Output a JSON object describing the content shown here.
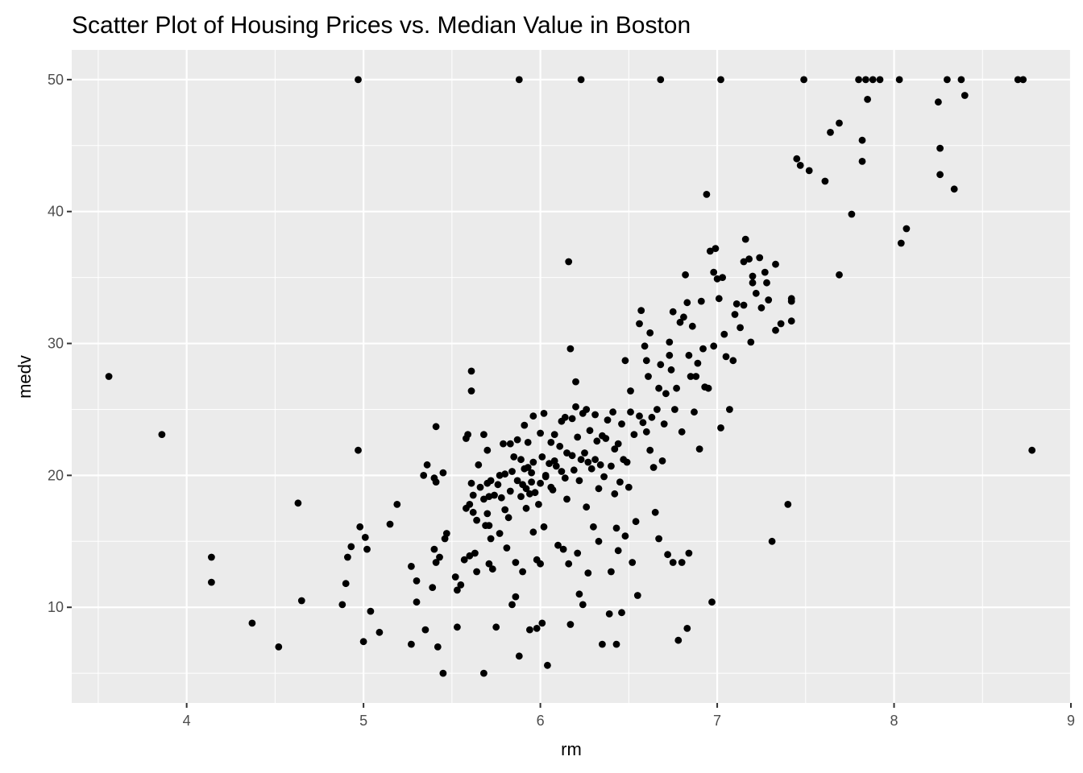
{
  "chart_data": {
    "type": "scatter",
    "title": "Scatter Plot of Housing Prices vs. Median Value in Boston",
    "xlabel": "rm",
    "ylabel": "medv",
    "xlim": [
      3.35,
      9.0
    ],
    "ylim": [
      2.75,
      52.25
    ],
    "xticks": [
      4,
      5,
      6,
      7,
      8,
      9
    ],
    "yticks": [
      10,
      20,
      30,
      40,
      50
    ],
    "grid": true,
    "panel_color": "#ebebeb",
    "point_color": "#000000",
    "points": [
      [
        3.56,
        27.5
      ],
      [
        3.86,
        23.1
      ],
      [
        4.14,
        13.8
      ],
      [
        4.14,
        11.9
      ],
      [
        4.37,
        8.8
      ],
      [
        4.52,
        7.0
      ],
      [
        4.63,
        17.9
      ],
      [
        4.65,
        10.5
      ],
      [
        4.88,
        10.2
      ],
      [
        4.9,
        11.8
      ],
      [
        4.91,
        13.8
      ],
      [
        4.93,
        14.6
      ],
      [
        4.97,
        50.0
      ],
      [
        4.97,
        21.9
      ],
      [
        4.98,
        16.1
      ],
      [
        5.0,
        7.4
      ],
      [
        5.01,
        15.3
      ],
      [
        5.02,
        14.4
      ],
      [
        5.04,
        9.7
      ],
      [
        5.09,
        8.1
      ],
      [
        5.15,
        16.3
      ],
      [
        5.19,
        17.8
      ],
      [
        5.27,
        13.1
      ],
      [
        5.27,
        7.2
      ],
      [
        5.3,
        12.0
      ],
      [
        5.3,
        10.4
      ],
      [
        5.34,
        20.0
      ],
      [
        5.35,
        8.3
      ],
      [
        5.36,
        20.8
      ],
      [
        5.39,
        11.5
      ],
      [
        5.4,
        19.8
      ],
      [
        5.4,
        14.4
      ],
      [
        5.41,
        13.4
      ],
      [
        5.41,
        19.5
      ],
      [
        5.41,
        23.7
      ],
      [
        5.42,
        7.0
      ],
      [
        5.43,
        13.8
      ],
      [
        5.45,
        20.2
      ],
      [
        5.45,
        5.0
      ],
      [
        5.46,
        15.2
      ],
      [
        5.47,
        15.6
      ],
      [
        5.52,
        12.3
      ],
      [
        5.53,
        8.5
      ],
      [
        5.53,
        11.3
      ],
      [
        5.55,
        11.7
      ],
      [
        5.57,
        13.6
      ],
      [
        5.58,
        17.5
      ],
      [
        5.58,
        22.8
      ],
      [
        5.59,
        23.1
      ],
      [
        5.6,
        17.8
      ],
      [
        5.6,
        13.9
      ],
      [
        5.61,
        19.4
      ],
      [
        5.61,
        26.4
      ],
      [
        5.61,
        27.9
      ],
      [
        5.62,
        18.5
      ],
      [
        5.62,
        17.2
      ],
      [
        5.63,
        14.1
      ],
      [
        5.64,
        16.6
      ],
      [
        5.64,
        12.7
      ],
      [
        5.65,
        20.8
      ],
      [
        5.66,
        19.1
      ],
      [
        5.68,
        18.2
      ],
      [
        5.68,
        23.1
      ],
      [
        5.68,
        5.0
      ],
      [
        5.69,
        16.2
      ],
      [
        5.7,
        17.1
      ],
      [
        5.7,
        19.4
      ],
      [
        5.7,
        21.9
      ],
      [
        5.71,
        13.3
      ],
      [
        5.71,
        16.2
      ],
      [
        5.71,
        18.4
      ],
      [
        5.72,
        15.2
      ],
      [
        5.72,
        19.6
      ],
      [
        5.73,
        12.9
      ],
      [
        5.74,
        18.5
      ],
      [
        5.75,
        8.5
      ],
      [
        5.76,
        19.3
      ],
      [
        5.77,
        20.0
      ],
      [
        5.77,
        15.6
      ],
      [
        5.78,
        18.3
      ],
      [
        5.79,
        22.4
      ],
      [
        5.8,
        17.4
      ],
      [
        5.8,
        20.1
      ],
      [
        5.81,
        14.5
      ],
      [
        5.82,
        16.8
      ],
      [
        5.83,
        18.8
      ],
      [
        5.83,
        22.4
      ],
      [
        5.84,
        20.3
      ],
      [
        5.84,
        10.2
      ],
      [
        5.85,
        21.4
      ],
      [
        5.86,
        10.8
      ],
      [
        5.86,
        13.4
      ],
      [
        5.87,
        19.6
      ],
      [
        5.87,
        22.7
      ],
      [
        5.88,
        6.3
      ],
      [
        5.88,
        50.0
      ],
      [
        5.89,
        21.2
      ],
      [
        5.89,
        18.4
      ],
      [
        5.9,
        19.3
      ],
      [
        5.9,
        12.7
      ],
      [
        5.91,
        23.8
      ],
      [
        5.91,
        20.5
      ],
      [
        5.92,
        19.0
      ],
      [
        5.92,
        17.5
      ],
      [
        5.93,
        20.6
      ],
      [
        5.93,
        22.5
      ],
      [
        5.94,
        18.6
      ],
      [
        5.94,
        8.3
      ],
      [
        5.95,
        20.2
      ],
      [
        5.95,
        19.5
      ],
      [
        5.96,
        21.0
      ],
      [
        5.96,
        15.7
      ],
      [
        5.96,
        24.5
      ],
      [
        5.97,
        18.7
      ],
      [
        5.98,
        13.6
      ],
      [
        5.98,
        8.4
      ],
      [
        5.99,
        17.8
      ],
      [
        6.0,
        19.4
      ],
      [
        6.0,
        23.2
      ],
      [
        6.0,
        13.3
      ],
      [
        6.01,
        8.8
      ],
      [
        6.01,
        21.4
      ],
      [
        6.02,
        24.7
      ],
      [
        6.02,
        16.1
      ],
      [
        6.03,
        20.0
      ],
      [
        6.03,
        19.9
      ],
      [
        6.04,
        5.6
      ],
      [
        6.05,
        20.9
      ],
      [
        6.06,
        22.5
      ],
      [
        6.06,
        19.1
      ],
      [
        6.07,
        18.9
      ],
      [
        6.08,
        21.1
      ],
      [
        6.08,
        23.1
      ],
      [
        6.09,
        20.7
      ],
      [
        6.1,
        14.7
      ],
      [
        6.11,
        22.2
      ],
      [
        6.12,
        24.1
      ],
      [
        6.12,
        20.3
      ],
      [
        6.13,
        14.4
      ],
      [
        6.14,
        24.4
      ],
      [
        6.14,
        19.8
      ],
      [
        6.15,
        21.7
      ],
      [
        6.15,
        18.2
      ],
      [
        6.16,
        13.3
      ],
      [
        6.16,
        36.2
      ],
      [
        6.17,
        29.6
      ],
      [
        6.17,
        8.7
      ],
      [
        6.18,
        21.5
      ],
      [
        6.18,
        24.3
      ],
      [
        6.19,
        20.4
      ],
      [
        6.2,
        25.2
      ],
      [
        6.2,
        27.1
      ],
      [
        6.21,
        14.1
      ],
      [
        6.21,
        22.9
      ],
      [
        6.22,
        11.0
      ],
      [
        6.22,
        19.6
      ],
      [
        6.23,
        50.0
      ],
      [
        6.23,
        21.2
      ],
      [
        6.24,
        10.2
      ],
      [
        6.24,
        24.7
      ],
      [
        6.25,
        21.7
      ],
      [
        6.26,
        17.6
      ],
      [
        6.26,
        25.0
      ],
      [
        6.27,
        12.6
      ],
      [
        6.27,
        21.0
      ],
      [
        6.28,
        23.4
      ],
      [
        6.29,
        20.5
      ],
      [
        6.3,
        16.1
      ],
      [
        6.31,
        24.6
      ],
      [
        6.31,
        21.2
      ],
      [
        6.32,
        22.6
      ],
      [
        6.33,
        15.0
      ],
      [
        6.33,
        19.0
      ],
      [
        6.34,
        20.8
      ],
      [
        6.35,
        7.2
      ],
      [
        6.35,
        23.0
      ],
      [
        6.36,
        19.9
      ],
      [
        6.37,
        22.8
      ],
      [
        6.38,
        24.2
      ],
      [
        6.39,
        9.5
      ],
      [
        6.4,
        20.7
      ],
      [
        6.4,
        12.7
      ],
      [
        6.41,
        24.8
      ],
      [
        6.42,
        22.0
      ],
      [
        6.42,
        18.6
      ],
      [
        6.43,
        7.2
      ],
      [
        6.43,
        16.0
      ],
      [
        6.44,
        14.3
      ],
      [
        6.44,
        22.4
      ],
      [
        6.45,
        19.5
      ],
      [
        6.46,
        23.9
      ],
      [
        6.46,
        9.6
      ],
      [
        6.47,
        21.2
      ],
      [
        6.48,
        15.4
      ],
      [
        6.48,
        28.7
      ],
      [
        6.49,
        21.0
      ],
      [
        6.5,
        19.1
      ],
      [
        6.51,
        24.8
      ],
      [
        6.51,
        26.4
      ],
      [
        6.52,
        13.4
      ],
      [
        6.53,
        23.1
      ],
      [
        6.54,
        16.5
      ],
      [
        6.55,
        10.9
      ],
      [
        6.56,
        31.5
      ],
      [
        6.56,
        24.5
      ],
      [
        6.57,
        32.5
      ],
      [
        6.58,
        24.0
      ],
      [
        6.59,
        29.8
      ],
      [
        6.6,
        23.3
      ],
      [
        6.6,
        28.7
      ],
      [
        6.61,
        27.5
      ],
      [
        6.62,
        21.9
      ],
      [
        6.62,
        30.8
      ],
      [
        6.63,
        24.4
      ],
      [
        6.64,
        20.6
      ],
      [
        6.65,
        17.2
      ],
      [
        6.66,
        25.0
      ],
      [
        6.67,
        26.6
      ],
      [
        6.67,
        15.2
      ],
      [
        6.68,
        50.0
      ],
      [
        6.68,
        28.4
      ],
      [
        6.69,
        21.1
      ],
      [
        6.7,
        23.9
      ],
      [
        6.71,
        26.2
      ],
      [
        6.72,
        14.0
      ],
      [
        6.73,
        30.1
      ],
      [
        6.73,
        29.1
      ],
      [
        6.74,
        28.0
      ],
      [
        6.75,
        13.4
      ],
      [
        6.75,
        32.4
      ],
      [
        6.76,
        25.0
      ],
      [
        6.77,
        26.6
      ],
      [
        6.78,
        7.5
      ],
      [
        6.79,
        31.6
      ],
      [
        6.8,
        13.4
      ],
      [
        6.8,
        23.3
      ],
      [
        6.81,
        32.0
      ],
      [
        6.82,
        35.2
      ],
      [
        6.83,
        8.4
      ],
      [
        6.83,
        33.1
      ],
      [
        6.84,
        29.1
      ],
      [
        6.84,
        14.1
      ],
      [
        6.85,
        27.5
      ],
      [
        6.86,
        31.3
      ],
      [
        6.87,
        24.8
      ],
      [
        6.88,
        27.5
      ],
      [
        6.89,
        28.5
      ],
      [
        6.9,
        22.0
      ],
      [
        6.91,
        33.2
      ],
      [
        6.92,
        29.6
      ],
      [
        6.93,
        26.7
      ],
      [
        6.94,
        41.3
      ],
      [
        6.95,
        26.6
      ],
      [
        6.96,
        37.0
      ],
      [
        6.97,
        10.4
      ],
      [
        6.98,
        35.4
      ],
      [
        6.98,
        29.8
      ],
      [
        6.99,
        37.2
      ],
      [
        7.0,
        34.9
      ],
      [
        7.01,
        33.4
      ],
      [
        7.02,
        50.0
      ],
      [
        7.02,
        23.6
      ],
      [
        7.03,
        35.0
      ],
      [
        7.04,
        30.7
      ],
      [
        7.05,
        29.0
      ],
      [
        7.07,
        25.0
      ],
      [
        7.09,
        28.7
      ],
      [
        7.1,
        32.2
      ],
      [
        7.11,
        33.0
      ],
      [
        7.13,
        31.2
      ],
      [
        7.15,
        32.9
      ],
      [
        7.15,
        36.2
      ],
      [
        7.16,
        37.9
      ],
      [
        7.18,
        36.4
      ],
      [
        7.19,
        30.1
      ],
      [
        7.2,
        35.1
      ],
      [
        7.2,
        34.6
      ],
      [
        7.22,
        33.8
      ],
      [
        7.24,
        36.5
      ],
      [
        7.25,
        32.7
      ],
      [
        7.27,
        35.4
      ],
      [
        7.28,
        34.6
      ],
      [
        7.29,
        33.3
      ],
      [
        7.31,
        15.0
      ],
      [
        7.33,
        31.0
      ],
      [
        7.33,
        36.0
      ],
      [
        7.36,
        31.5
      ],
      [
        7.4,
        17.8
      ],
      [
        7.42,
        33.4
      ],
      [
        7.42,
        31.7
      ],
      [
        7.42,
        33.2
      ],
      [
        7.45,
        44.0
      ],
      [
        7.47,
        43.5
      ],
      [
        7.49,
        50.0
      ],
      [
        7.52,
        43.1
      ],
      [
        7.61,
        42.3
      ],
      [
        7.64,
        46.0
      ],
      [
        7.69,
        35.2
      ],
      [
        7.69,
        46.7
      ],
      [
        7.76,
        39.8
      ],
      [
        7.8,
        50.0
      ],
      [
        7.82,
        43.8
      ],
      [
        7.82,
        45.4
      ],
      [
        7.84,
        50.0
      ],
      [
        7.85,
        48.5
      ],
      [
        7.88,
        50.0
      ],
      [
        7.92,
        50.0
      ],
      [
        8.03,
        50.0
      ],
      [
        8.04,
        37.6
      ],
      [
        8.07,
        38.7
      ],
      [
        8.25,
        48.3
      ],
      [
        8.26,
        42.8
      ],
      [
        8.26,
        44.8
      ],
      [
        8.3,
        50.0
      ],
      [
        8.34,
        41.7
      ],
      [
        8.38,
        50.0
      ],
      [
        8.4,
        48.8
      ],
      [
        8.7,
        50.0
      ],
      [
        8.73,
        50.0
      ],
      [
        8.78,
        21.9
      ]
    ]
  }
}
